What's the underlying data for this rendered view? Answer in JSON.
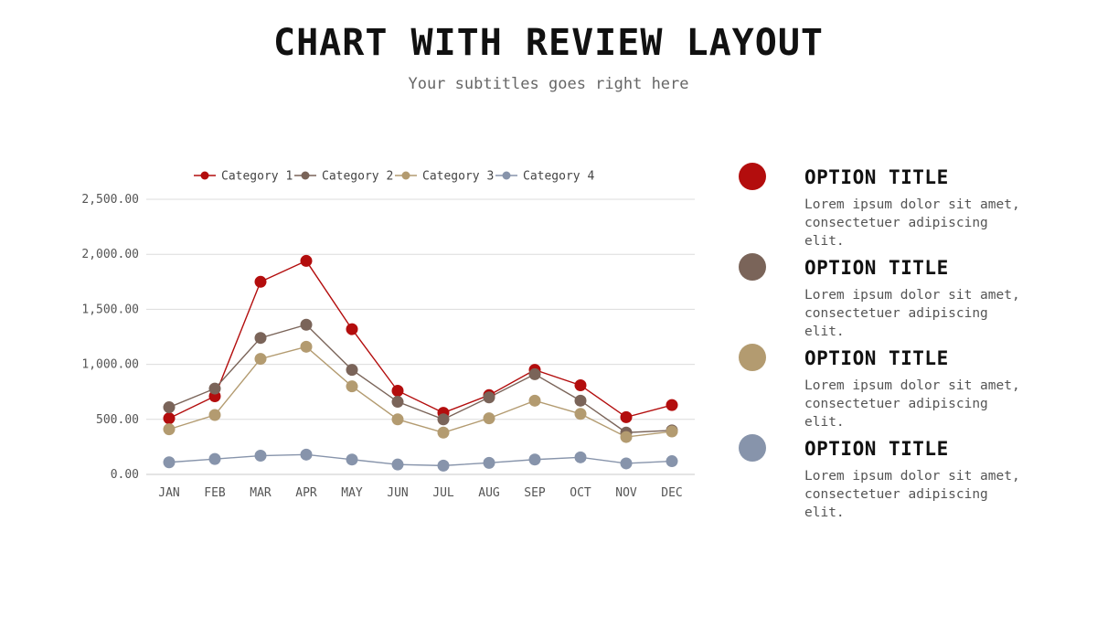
{
  "header": {
    "title": "CHART WITH REVIEW LAYOUT",
    "subtitle": "Your subtitles goes right here"
  },
  "chart_data": {
    "type": "line",
    "categories": [
      "JAN",
      "FEB",
      "MAR",
      "APR",
      "MAY",
      "JUN",
      "JUL",
      "AUG",
      "SEP",
      "OCT",
      "NOV",
      "DEC"
    ],
    "series": [
      {
        "name": "Category 1",
        "color": "#b30d0d",
        "values": [
          510,
          710,
          1750,
          1940,
          1320,
          760,
          560,
          720,
          950,
          810,
          520,
          630
        ]
      },
      {
        "name": "Category 2",
        "color": "#7a6459",
        "values": [
          610,
          780,
          1240,
          1360,
          950,
          660,
          500,
          700,
          910,
          670,
          380,
          400
        ]
      },
      {
        "name": "Category 3",
        "color": "#b39b70",
        "values": [
          410,
          540,
          1050,
          1160,
          800,
          500,
          380,
          510,
          670,
          550,
          340,
          390
        ]
      },
      {
        "name": "Category 4",
        "color": "#8794ab",
        "values": [
          110,
          140,
          170,
          180,
          135,
          90,
          80,
          105,
          135,
          155,
          100,
          120
        ]
      }
    ],
    "ylim": [
      0,
      2500
    ],
    "yticks": [
      "0.00",
      "500.00",
      "1,000.00",
      "1,500.00",
      "2,000.00",
      "2,500.00"
    ],
    "ytick_values": [
      0,
      500,
      1000,
      1500,
      2000,
      2500
    ],
    "grid": true,
    "legend_position": "top"
  },
  "options": [
    {
      "title": "OPTION TITLE",
      "text": "Lorem ipsum dolor sit amet, consectetuer adipiscing elit.",
      "color": "#b30d0d"
    },
    {
      "title": "OPTION TITLE",
      "text": "Lorem ipsum dolor sit amet, consectetuer adipiscing elit.",
      "color": "#7a6459"
    },
    {
      "title": "OPTION TITLE",
      "text": "Lorem ipsum dolor sit amet, consectetuer adipiscing elit.",
      "color": "#b39b70"
    },
    {
      "title": "OPTION TITLE",
      "text": "Lorem ipsum dolor sit amet, consectetuer adipiscing elit.",
      "color": "#8794ab"
    }
  ]
}
